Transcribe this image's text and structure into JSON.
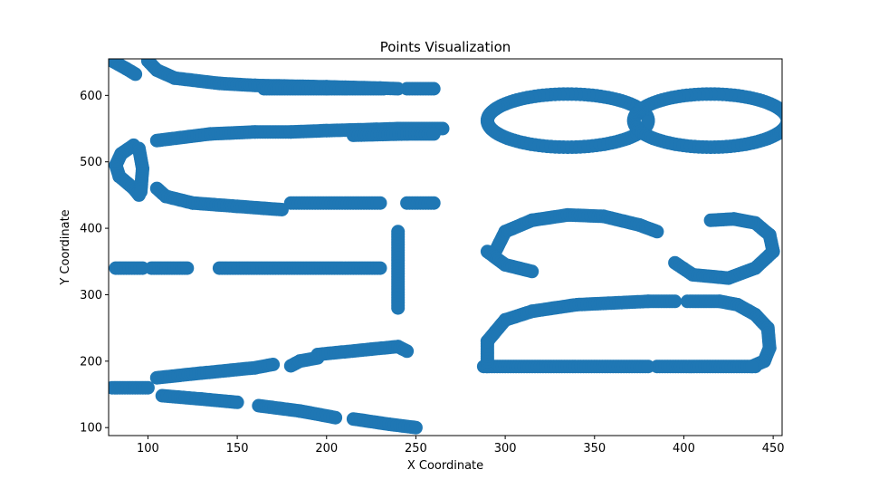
{
  "chart_data": {
    "type": "scatter",
    "title": "Points Visualization",
    "xlabel": "X Coordinate",
    "ylabel": "Y Coordinate",
    "xlim": [
      78,
      455
    ],
    "ylim": [
      88,
      655
    ],
    "xticks": [
      100,
      150,
      200,
      250,
      300,
      350,
      400,
      450
    ],
    "yticks": [
      100,
      200,
      300,
      400,
      500,
      600
    ],
    "grid": false,
    "marker_color": "#1f77b4",
    "series": [
      {
        "segments": [
          {
            "kind": "line",
            "pts": [
              [
                80,
                652
              ],
              [
                88,
                640
              ],
              [
                93,
                632
              ]
            ]
          },
          {
            "kind": "line",
            "pts": [
              [
                100,
                652
              ],
              [
                105,
                638
              ],
              [
                115,
                626
              ],
              [
                140,
                618
              ],
              [
                160,
                615
              ],
              [
                200,
                613
              ],
              [
                230,
                611
              ],
              [
                240,
                610
              ]
            ]
          },
          {
            "kind": "line",
            "pts": [
              [
                165,
                610
              ],
              [
                200,
                610
              ],
              [
                232,
                610
              ]
            ]
          },
          {
            "kind": "line",
            "pts": [
              [
                245,
                610
              ],
              [
                260,
                610
              ]
            ]
          },
          {
            "kind": "line",
            "pts": [
              [
                105,
                532
              ],
              [
                135,
                542
              ],
              [
                160,
                545
              ],
              [
                180,
                545
              ],
              [
                200,
                547
              ],
              [
                228,
                549
              ],
              [
                240,
                550
              ],
              [
                265,
                550
              ]
            ]
          },
          {
            "kind": "line",
            "pts": [
              [
                215,
                540
              ],
              [
                245,
                542
              ]
            ]
          },
          {
            "kind": "line",
            "pts": [
              [
                245,
                542
              ],
              [
                260,
                542
              ]
            ]
          },
          {
            "kind": "line",
            "pts": [
              [
                92,
                525
              ],
              [
                85,
                512
              ],
              [
                82,
                495
              ],
              [
                84,
                478
              ],
              [
                92,
                460
              ],
              [
                95,
                450
              ]
            ]
          },
          {
            "kind": "line",
            "pts": [
              [
                95,
                520
              ],
              [
                97,
                490
              ],
              [
                96,
                455
              ]
            ]
          },
          {
            "kind": "line",
            "pts": [
              [
                105,
                460
              ],
              [
                110,
                448
              ],
              [
                125,
                438
              ],
              [
                150,
                433
              ],
              [
                165,
                430
              ],
              [
                175,
                428
              ]
            ]
          },
          {
            "kind": "line",
            "pts": [
              [
                180,
                438
              ],
              [
                230,
                438
              ]
            ]
          },
          {
            "kind": "line",
            "pts": [
              [
                245,
                438
              ],
              [
                260,
                438
              ]
            ]
          },
          {
            "kind": "line",
            "pts": [
              [
                82,
                340
              ],
              [
                97,
                340
              ]
            ]
          },
          {
            "kind": "line",
            "pts": [
              [
                102,
                340
              ],
              [
                122,
                340
              ]
            ]
          },
          {
            "kind": "line",
            "pts": [
              [
                140,
                340
              ],
              [
                230,
                340
              ]
            ]
          },
          {
            "kind": "line",
            "pts": [
              [
                240,
                395
              ],
              [
                240,
                280
              ]
            ]
          },
          {
            "kind": "line",
            "pts": [
              [
                80,
                160
              ],
              [
                100,
                160
              ]
            ]
          },
          {
            "kind": "line",
            "pts": [
              [
                105,
                175
              ],
              [
                130,
                182
              ],
              [
                160,
                190
              ],
              [
                170,
                195
              ]
            ]
          },
          {
            "kind": "line",
            "pts": [
              [
                180,
                193
              ],
              [
                185,
                200
              ],
              [
                195,
                205
              ]
            ]
          },
          {
            "kind": "line",
            "pts": [
              [
                195,
                210
              ],
              [
                225,
                218
              ],
              [
                240,
                222
              ],
              [
                245,
                215
              ]
            ]
          },
          {
            "kind": "line",
            "pts": [
              [
                108,
                148
              ],
              [
                130,
                143
              ],
              [
                150,
                138
              ]
            ]
          },
          {
            "kind": "line",
            "pts": [
              [
                162,
                133
              ],
              [
                185,
                125
              ],
              [
                205,
                115
              ]
            ]
          },
          {
            "kind": "line",
            "pts": [
              [
                215,
                113
              ],
              [
                235,
                105
              ],
              [
                250,
                100
              ]
            ]
          },
          {
            "kind": "line",
            "pts": [
              [
                288,
                192
              ],
              [
                380,
                192
              ]
            ]
          },
          {
            "kind": "line",
            "pts": [
              [
                385,
                192
              ],
              [
                440,
                192
              ]
            ]
          },
          {
            "kind": "line",
            "pts": [
              [
                290,
                192
              ],
              [
                290,
                230
              ],
              [
                300,
                262
              ],
              [
                315,
                275
              ],
              [
                340,
                285
              ],
              [
                380,
                290
              ],
              [
                395,
                290
              ]
            ]
          },
          {
            "kind": "line",
            "pts": [
              [
                402,
                290
              ],
              [
                420,
                290
              ],
              [
                430,
                285
              ],
              [
                440,
                270
              ],
              [
                447,
                250
              ],
              [
                448,
                220
              ],
              [
                445,
                200
              ],
              [
                438,
                192
              ]
            ]
          },
          {
            "kind": "line",
            "pts": [
              [
                295,
                368
              ],
              [
                300,
                395
              ],
              [
                315,
                412
              ],
              [
                335,
                420
              ],
              [
                355,
                418
              ],
              [
                375,
                405
              ],
              [
                385,
                395
              ]
            ]
          },
          {
            "kind": "line",
            "pts": [
              [
                290,
                365
              ],
              [
                300,
                345
              ],
              [
                315,
                335
              ]
            ]
          },
          {
            "kind": "line",
            "pts": [
              [
                395,
                348
              ],
              [
                405,
                330
              ],
              [
                425,
                325
              ],
              [
                440,
                340
              ],
              [
                450,
                365
              ],
              [
                448,
                390
              ],
              [
                440,
                408
              ],
              [
                428,
                414
              ],
              [
                415,
                412
              ]
            ]
          },
          {
            "kind": "ring",
            "cx": 335,
            "cy": 562,
            "rx": 45,
            "ry": 40
          },
          {
            "kind": "ring",
            "cx": 415,
            "cy": 562,
            "rx": 43,
            "ry": 40
          }
        ]
      }
    ]
  }
}
